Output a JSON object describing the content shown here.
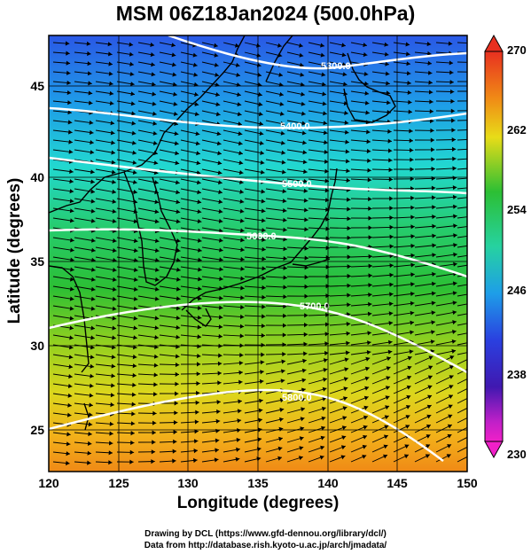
{
  "title": "MSM 06Z18Jan2024 (500.0hPa)",
  "xaxis": {
    "label": "Longitude (degrees)",
    "ticks": [
      "120",
      "125",
      "130",
      "135",
      "140",
      "145",
      "150"
    ]
  },
  "yaxis": {
    "label": "Latitude  (degrees)",
    "ticks": [
      "25",
      "30",
      "35",
      "40",
      "45"
    ]
  },
  "colorbar": {
    "ticks": [
      "270",
      "262",
      "254",
      "246",
      "238",
      "230"
    ],
    "range": [
      230,
      270
    ]
  },
  "contours": [
    {
      "label": "5300.0"
    },
    {
      "label": "5400.0"
    },
    {
      "label": "5500.0"
    },
    {
      "label": "5600.0"
    },
    {
      "label": "5700.0"
    },
    {
      "label": "5800.0"
    }
  ],
  "credits": {
    "line1": "Drawing by DCL (https://www.gfd-dennou.org/library/dcl/)",
    "line2": "Data from http://database.rish.kyoto-u.ac.jp/arch/jmadata/"
  },
  "colors": {
    "north": "#1f5fe0",
    "mid": "#35c84a",
    "south": "#f0a420",
    "contour": "#ffffff",
    "vector": "#000000"
  }
}
